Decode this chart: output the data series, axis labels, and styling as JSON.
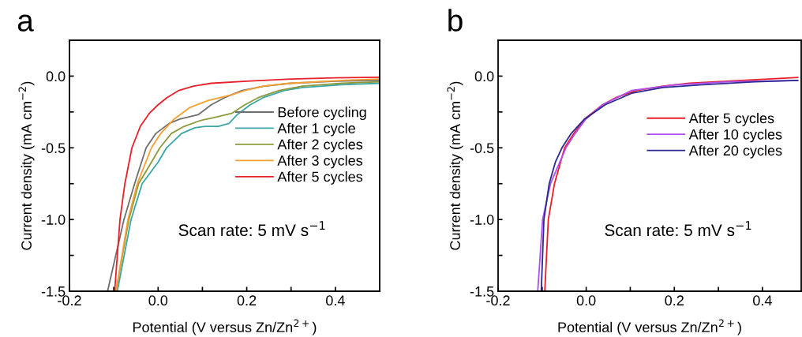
{
  "chart_data": [
    {
      "type": "line",
      "title": "a",
      "xlabel": "Potential (V versus Zn/Zn$^{2+}$)",
      "ylabel": "Current density (mA cm$^{−2}$)",
      "xlim": [
        -0.2,
        0.5
      ],
      "ylim": [
        -1.5,
        0.25
      ],
      "xticks": [
        {
          "value": -0.2,
          "label": "-0.2"
        },
        {
          "value": -0.1,
          "label": null
        },
        {
          "value": 0,
          "label": "0.0"
        },
        {
          "value": 0.1,
          "label": null
        },
        {
          "value": 0.2,
          "label": "0.2"
        },
        {
          "value": 0.3,
          "label": null
        },
        {
          "value": 0.4,
          "label": "0.4"
        }
      ],
      "yticks": [
        {
          "value": -1.5,
          "label": "-1.5"
        },
        {
          "value": -1.25,
          "label": null
        },
        {
          "value": -1,
          "label": "-1.0"
        },
        {
          "value": -0.75,
          "label": null
        },
        {
          "value": -0.5,
          "label": "-0.5"
        },
        {
          "value": -0.25,
          "label": null
        },
        {
          "value": 0,
          "label": "0.0"
        }
      ],
      "legend": "right",
      "grid": false,
      "marker": "none",
      "line_style": "solid",
      "annotations": [
        "Scan rate: 5 mV s$^{−1}$"
      ],
      "series": [
        {
          "name": "Before cycling",
          "color": "#6e6e6e",
          "x": [
            -0.114,
            -0.077,
            -0.053,
            -0.027,
            -0.005,
            0.025,
            0.049,
            0.09,
            0.12,
            0.15,
            0.19,
            0.24,
            0.3,
            0.4,
            0.5
          ],
          "values": [
            -1.5,
            -1.0,
            -0.75,
            -0.5,
            -0.4,
            -0.33,
            -0.3,
            -0.27,
            -0.2,
            -0.15,
            -0.1,
            -0.07,
            -0.05,
            -0.035,
            -0.03
          ]
        },
        {
          "name": "After 1 cycle",
          "color": "#3aa6a6",
          "x": [
            -0.092,
            -0.061,
            -0.036,
            0.0,
            0.019,
            0.053,
            0.083,
            0.107,
            0.136,
            0.16,
            0.178,
            0.208,
            0.237,
            0.285,
            0.326,
            0.415,
            0.5
          ],
          "values": [
            -1.5,
            -1.0,
            -0.75,
            -0.6,
            -0.5,
            -0.4,
            -0.36,
            -0.35,
            -0.35,
            -0.33,
            -0.27,
            -0.2,
            -0.15,
            -0.1,
            -0.08,
            -0.06,
            -0.05
          ]
        },
        {
          "name": "After 2 cycles",
          "color": "#8c9a3c",
          "x": [
            -0.095,
            -0.066,
            -0.044,
            -0.015,
            0.004,
            0.03,
            0.059,
            0.095,
            0.125,
            0.166,
            0.196,
            0.226,
            0.273,
            0.326,
            0.415,
            0.5
          ],
          "values": [
            -1.5,
            -1.0,
            -0.75,
            -0.6,
            -0.5,
            -0.4,
            -0.35,
            -0.31,
            -0.29,
            -0.26,
            -0.2,
            -0.15,
            -0.1,
            -0.07,
            -0.05,
            -0.04
          ]
        },
        {
          "name": "After 3 cycles",
          "color": "#f5a030",
          "x": [
            -0.095,
            -0.068,
            -0.047,
            -0.015,
            0.006,
            0.036,
            0.071,
            0.113,
            0.166,
            0.196,
            0.237,
            0.297,
            0.415,
            0.5
          ],
          "values": [
            -1.5,
            -1.0,
            -0.75,
            -0.5,
            -0.4,
            -0.3,
            -0.22,
            -0.17,
            -0.13,
            -0.1,
            -0.07,
            -0.05,
            -0.03,
            -0.02
          ]
        },
        {
          "name": "After 5 cycles",
          "color": "#e8202a",
          "x": [
            -0.098,
            -0.092,
            -0.086,
            -0.075,
            -0.059,
            -0.04,
            -0.02,
            0.0,
            0.02,
            0.047,
            0.08,
            0.12,
            0.2,
            0.3,
            0.4,
            0.5
          ],
          "values": [
            -1.5,
            -1.25,
            -1.0,
            -0.75,
            -0.5,
            -0.35,
            -0.26,
            -0.2,
            -0.15,
            -0.1,
            -0.07,
            -0.05,
            -0.035,
            -0.02,
            -0.012,
            -0.008
          ]
        }
      ]
    },
    {
      "type": "line",
      "title": "b",
      "xlabel": "Potential (V versus Zn/Zn$^{2+}$)",
      "ylabel": "Current density (mA cm$^{−2}$)",
      "xlim": [
        -0.2,
        0.488
      ],
      "ylim": [
        -1.5,
        0.25
      ],
      "xticks": [
        {
          "value": -0.2,
          "label": "-0.2"
        },
        {
          "value": -0.1,
          "label": null
        },
        {
          "value": 0,
          "label": "0.0"
        },
        {
          "value": 0.1,
          "label": null
        },
        {
          "value": 0.2,
          "label": "0.2"
        },
        {
          "value": 0.3,
          "label": null
        },
        {
          "value": 0.4,
          "label": "0.4"
        }
      ],
      "yticks": [
        {
          "value": -1.5,
          "label": "-1.5"
        },
        {
          "value": -1.25,
          "label": null
        },
        {
          "value": -1,
          "label": "-1.0"
        },
        {
          "value": -0.75,
          "label": null
        },
        {
          "value": -0.5,
          "label": "-0.5"
        },
        {
          "value": -0.25,
          "label": null
        },
        {
          "value": 0,
          "label": "0.0"
        }
      ],
      "legend": "right",
      "grid": false,
      "marker": "none",
      "line_style": "solid",
      "annotations": [
        "Scan rate: 5 mV s$^{−1}$"
      ],
      "series": [
        {
          "name": "After 5 cycles",
          "color": "#e8202a",
          "x": [
            -0.094,
            -0.086,
            -0.072,
            -0.049,
            -0.028,
            -0.004,
            0.037,
            0.067,
            0.115,
            0.174,
            0.234,
            0.353,
            0.48
          ],
          "values": [
            -1.5,
            -1.0,
            -0.75,
            -0.5,
            -0.4,
            -0.3,
            -0.2,
            -0.15,
            -0.1,
            -0.07,
            -0.05,
            -0.03,
            -0.01
          ]
        },
        {
          "name": "After 10 cycles",
          "color": "#b04ef0",
          "x": [
            -0.11,
            -0.099,
            -0.081,
            -0.046,
            -0.025,
            -0.001,
            0.037,
            0.103,
            0.204,
            0.323,
            0.48
          ],
          "values": [
            -1.5,
            -1.0,
            -0.75,
            -0.5,
            -0.4,
            -0.3,
            -0.2,
            -0.1,
            -0.06,
            -0.04,
            -0.03
          ]
        },
        {
          "name": "After 20 cycles",
          "color": "#2a2a90",
          "x": [
            -0.102,
            -0.096,
            -0.084,
            -0.07,
            -0.055,
            -0.034,
            -0.004,
            0.043,
            0.103,
            0.174,
            0.264,
            0.383,
            0.48
          ],
          "values": [
            -1.5,
            -1.0,
            -0.75,
            -0.6,
            -0.5,
            -0.4,
            -0.3,
            -0.2,
            -0.12,
            -0.08,
            -0.06,
            -0.04,
            -0.03
          ]
        }
      ]
    }
  ]
}
